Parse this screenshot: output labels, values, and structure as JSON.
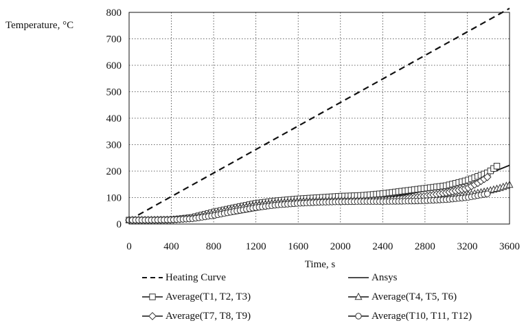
{
  "chart_data": {
    "type": "line",
    "ylabel": "Temperature, °C",
    "xlabel": "Time, s",
    "xlim": [
      0,
      3600
    ],
    "ylim": [
      0,
      800
    ],
    "xticks": [
      0,
      400,
      800,
      1200,
      1600,
      2000,
      2400,
      2800,
      3200,
      3600
    ],
    "yticks": [
      0,
      100,
      200,
      300,
      400,
      500,
      600,
      700,
      800
    ],
    "x_tick_labels": [
      "0",
      "400",
      "800",
      "1200",
      "1600",
      "2000",
      "2400",
      "2800",
      "3200",
      "3600"
    ],
    "y_tick_labels": [
      "0",
      "100",
      "200",
      "300",
      "400",
      "500",
      "600",
      "700",
      "800"
    ],
    "grid": true,
    "legend_position": "bottom",
    "series": [
      {
        "name": "Heating Curve",
        "style": "dashed",
        "marker": "none",
        "x": [
          0,
          3600
        ],
        "y": [
          15,
          815
        ]
      },
      {
        "name": "Ansys",
        "style": "solid",
        "marker": "none",
        "x": [
          0,
          400,
          600,
          800,
          1000,
          1200,
          1400,
          1600,
          1800,
          2000,
          2200,
          2400,
          2600,
          2800,
          3000,
          3200,
          3400,
          3600
        ],
        "y": [
          15,
          15,
          17,
          25,
          38,
          52,
          65,
          75,
          82,
          86,
          92,
          99,
          110,
          125,
          140,
          160,
          190,
          222
        ]
      },
      {
        "name": "Average(T1, T2, T3)",
        "style": "solid",
        "marker": "square",
        "x": [
          0,
          200,
          400,
          600,
          800,
          1000,
          1200,
          1400,
          1600,
          1800,
          2000,
          2200,
          2400,
          2600,
          2800,
          3000,
          3200,
          3400,
          3500
        ],
        "y": [
          15,
          15,
          16,
          25,
          45,
          62,
          78,
          88,
          95,
          100,
          105,
          108,
          115,
          125,
          135,
          145,
          165,
          195,
          225
        ]
      },
      {
        "name": "Average(T4, T5, T6)",
        "style": "solid",
        "marker": "triangle",
        "x": [
          0,
          200,
          400,
          600,
          800,
          1000,
          1200,
          1400,
          1600,
          1800,
          2000,
          2200,
          2400,
          2600,
          2800,
          3000,
          3200,
          3400,
          3500,
          3600
        ],
        "y": [
          15,
          15,
          16,
          22,
          40,
          58,
          72,
          80,
          85,
          87,
          88,
          88,
          88,
          90,
          95,
          100,
          110,
          125,
          135,
          148
        ]
      },
      {
        "name": "Average(T7, T8, T9)",
        "style": "solid",
        "marker": "diamond",
        "x": [
          0,
          200,
          400,
          600,
          800,
          1000,
          1200,
          1400,
          1600,
          1800,
          2000,
          2200,
          2400,
          2600,
          2800,
          3000,
          3200,
          3300,
          3400
        ],
        "y": [
          15,
          15,
          16,
          22,
          38,
          55,
          68,
          77,
          82,
          85,
          87,
          88,
          90,
          95,
          105,
          118,
          135,
          155,
          180
        ]
      },
      {
        "name": "Average(T10, T11, T12)",
        "style": "solid",
        "marker": "circle",
        "x": [
          0,
          200,
          400,
          600,
          800,
          1000,
          1200,
          1400,
          1600,
          1800,
          2000,
          2200,
          2400,
          2600,
          2800,
          3000,
          3200,
          3400
        ],
        "y": [
          15,
          15,
          16,
          20,
          32,
          48,
          62,
          72,
          78,
          82,
          84,
          85,
          85,
          86,
          88,
          92,
          100,
          115
        ]
      }
    ]
  }
}
